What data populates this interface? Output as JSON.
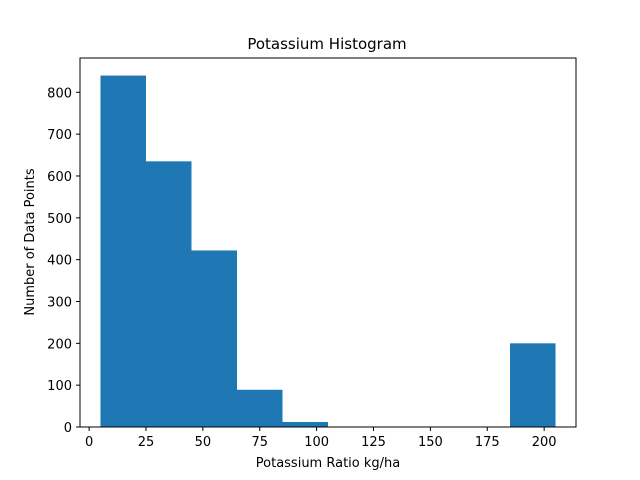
{
  "chart_data": {
    "type": "bar",
    "title": "Potassium Histogram",
    "xlabel": "Potassium Ratio kg/ha",
    "ylabel": "Number of Data Points",
    "bin_edges": [
      5,
      25,
      45,
      65,
      85,
      105,
      125,
      145,
      165,
      185,
      205
    ],
    "values": [
      840,
      635,
      422,
      89,
      12,
      0,
      0,
      0,
      0,
      200
    ],
    "xlim": [
      -4,
      214
    ],
    "ylim": [
      0,
      882
    ],
    "xticks": [
      0,
      25,
      50,
      75,
      100,
      125,
      150,
      175,
      200
    ],
    "yticks": [
      0,
      100,
      200,
      300,
      400,
      500,
      600,
      700,
      800
    ],
    "bar_color": "#1f77b4",
    "grid": false,
    "legend": "none"
  }
}
